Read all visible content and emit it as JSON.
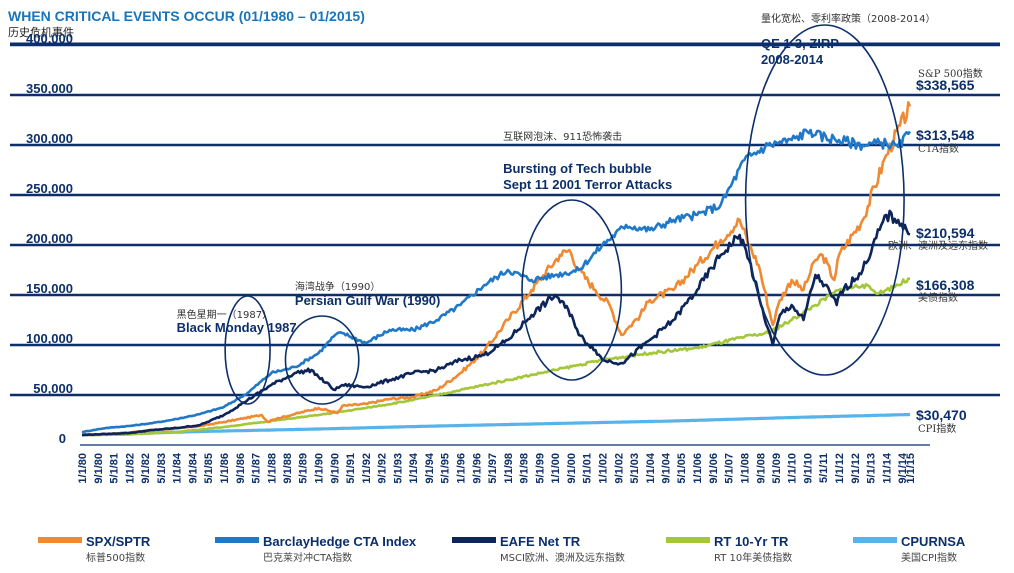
{
  "chart_data": {
    "type": "line",
    "title": "WHEN CRITICAL EVENTS OCCUR (01/1980 – 01/2015)",
    "subtitle": "历史危机事件",
    "ylim": [
      0,
      400000
    ],
    "yticks": [
      "0",
      "50,000",
      "100,000",
      "150,000",
      "200,000",
      "250,000",
      "300,000",
      "350,000",
      "400,000"
    ],
    "xlim": [
      1980.0,
      2015.0
    ],
    "xticks": [
      {
        "label": "1/1/80",
        "t": 1980.0
      },
      {
        "label": "9/1/80",
        "t": 1980.67
      },
      {
        "label": "5/1/81",
        "t": 1981.33
      },
      {
        "label": "1/1/82",
        "t": 1982.0
      },
      {
        "label": "9/1/82",
        "t": 1982.67
      },
      {
        "label": "5/1/83",
        "t": 1983.33
      },
      {
        "label": "1/1/84",
        "t": 1984.0
      },
      {
        "label": "9/1/84",
        "t": 1984.67
      },
      {
        "label": "5/1/85",
        "t": 1985.33
      },
      {
        "label": "1/1/86",
        "t": 1986.0
      },
      {
        "label": "9/1/86",
        "t": 1986.67
      },
      {
        "label": "5/1/87",
        "t": 1987.33
      },
      {
        "label": "1/1/88",
        "t": 1988.0
      },
      {
        "label": "9/1/88",
        "t": 1988.67
      },
      {
        "label": "5/1/89",
        "t": 1989.33
      },
      {
        "label": "1/1/90",
        "t": 1990.0
      },
      {
        "label": "9/1/90",
        "t": 1990.67
      },
      {
        "label": "5/1/91",
        "t": 1991.33
      },
      {
        "label": "1/1/92",
        "t": 1992.0
      },
      {
        "label": "9/1/92",
        "t": 1992.67
      },
      {
        "label": "5/1/93",
        "t": 1993.33
      },
      {
        "label": "1/1/94",
        "t": 1994.0
      },
      {
        "label": "9/1/94",
        "t": 1994.67
      },
      {
        "label": "5/1/95",
        "t": 1995.33
      },
      {
        "label": "1/1/96",
        "t": 1996.0
      },
      {
        "label": "9/1/96",
        "t": 1996.67
      },
      {
        "label": "5/1/97",
        "t": 1997.33
      },
      {
        "label": "1/1/98",
        "t": 1998.0
      },
      {
        "label": "9/1/98",
        "t": 1998.67
      },
      {
        "label": "5/1/99",
        "t": 1999.33
      },
      {
        "label": "1/1/00",
        "t": 2000.0
      },
      {
        "label": "9/1/00",
        "t": 2000.67
      },
      {
        "label": "5/1/01",
        "t": 2001.33
      },
      {
        "label": "1/1/02",
        "t": 2002.0
      },
      {
        "label": "9/1/02",
        "t": 2002.67
      },
      {
        "label": "5/1/03",
        "t": 2003.33
      },
      {
        "label": "1/1/04",
        "t": 2004.0
      },
      {
        "label": "9/1/04",
        "t": 2004.67
      },
      {
        "label": "5/1/05",
        "t": 2005.33
      },
      {
        "label": "1/1/06",
        "t": 2006.0
      },
      {
        "label": "9/1/06",
        "t": 2006.67
      },
      {
        "label": "5/1/07",
        "t": 2007.33
      },
      {
        "label": "1/1/08",
        "t": 2008.0
      },
      {
        "label": "9/1/08",
        "t": 2008.67
      },
      {
        "label": "5/1/09",
        "t": 2009.33
      },
      {
        "label": "1/1/10",
        "t": 2010.0
      },
      {
        "label": "9/1/10",
        "t": 2010.67
      },
      {
        "label": "5/1/11",
        "t": 2011.33
      },
      {
        "label": "1/1/12",
        "t": 2012.0
      },
      {
        "label": "9/1/12",
        "t": 2012.67
      },
      {
        "label": "5/1/13",
        "t": 2013.33
      },
      {
        "label": "1/1/14",
        "t": 2014.0
      },
      {
        "label": "9/1/14",
        "t": 2014.67
      },
      {
        "label": "1/1/15",
        "t": 2015.0
      }
    ],
    "series": [
      {
        "name": "SPX/SPTR",
        "name_cn": "标普500指数",
        "color": "#f08a32",
        "end_value": "$338,565",
        "end_label": "S&P 500指数",
        "points": [
          [
            1980,
            10000
          ],
          [
            1981,
            11000
          ],
          [
            1982,
            12500
          ],
          [
            1983,
            15000
          ],
          [
            1984,
            16500
          ],
          [
            1985,
            19000
          ],
          [
            1986,
            23000
          ],
          [
            1987.6,
            30000
          ],
          [
            1987.85,
            23000
          ],
          [
            1988,
            25000
          ],
          [
            1989,
            31000
          ],
          [
            1990,
            37000
          ],
          [
            1990.8,
            32000
          ],
          [
            1991,
            39000
          ],
          [
            1992,
            41000
          ],
          [
            1993,
            46000
          ],
          [
            1994,
            48000
          ],
          [
            1995,
            55000
          ],
          [
            1996,
            72000
          ],
          [
            1997,
            94000
          ],
          [
            1998,
            125000
          ],
          [
            1999,
            155000
          ],
          [
            2000.2,
            190000
          ],
          [
            2000.6,
            195000
          ],
          [
            2001,
            175000
          ],
          [
            2001.7,
            155000
          ],
          [
            2002.3,
            140000
          ],
          [
            2002.8,
            110000
          ],
          [
            2003,
            115000
          ],
          [
            2003.6,
            130000
          ],
          [
            2004,
            145000
          ],
          [
            2005,
            155000
          ],
          [
            2006,
            180000
          ],
          [
            2007,
            205000
          ],
          [
            2007.8,
            225000
          ],
          [
            2008.2,
            200000
          ],
          [
            2008.6,
            180000
          ],
          [
            2009.2,
            120000
          ],
          [
            2009.5,
            145000
          ],
          [
            2010,
            165000
          ],
          [
            2010.5,
            155000
          ],
          [
            2011,
            185000
          ],
          [
            2011.3,
            190000
          ],
          [
            2011.8,
            165000
          ],
          [
            2012,
            190000
          ],
          [
            2013,
            225000
          ],
          [
            2014,
            290000
          ],
          [
            2015,
            338565
          ]
        ]
      },
      {
        "name": "BarclayHedge CTA Index",
        "name_cn": "巴克莱对冲CTA指数",
        "color": "#1f78c8",
        "end_value": "$313,548",
        "end_label": "CTA指数",
        "points": [
          [
            1980,
            13000
          ],
          [
            1981,
            17000
          ],
          [
            1982,
            19000
          ],
          [
            1983,
            22000
          ],
          [
            1984,
            26000
          ],
          [
            1985,
            31000
          ],
          [
            1986,
            38000
          ],
          [
            1987,
            52000
          ],
          [
            1987.8,
            68000
          ],
          [
            1988,
            72000
          ],
          [
            1989,
            78000
          ],
          [
            1990,
            92000
          ],
          [
            1990.7,
            110000
          ],
          [
            1991,
            112000
          ],
          [
            1992,
            102000
          ],
          [
            1993,
            115000
          ],
          [
            1994,
            115000
          ],
          [
            1995,
            125000
          ],
          [
            1996,
            140000
          ],
          [
            1997,
            160000
          ],
          [
            1998,
            175000
          ],
          [
            1999,
            165000
          ],
          [
            2000,
            170000
          ],
          [
            2001,
            175000
          ],
          [
            2002,
            200000
          ],
          [
            2003,
            220000
          ],
          [
            2004,
            215000
          ],
          [
            2005,
            225000
          ],
          [
            2006,
            230000
          ],
          [
            2007,
            240000
          ],
          [
            2008,
            285000
          ],
          [
            2009,
            300000
          ],
          [
            2010,
            305000
          ],
          [
            2010.8,
            315000
          ],
          [
            2011,
            310000
          ],
          [
            2012,
            305000
          ],
          [
            2013,
            300000
          ],
          [
            2014,
            302000
          ],
          [
            2014.5,
            298000
          ],
          [
            2015,
            313548
          ]
        ]
      },
      {
        "name": "EAFE Net TR",
        "name_cn": "MSCI欧洲、澳洲及远东指数",
        "color": "#0c2458",
        "end_value": "$210,594",
        "end_label": "欧洲、澳洲及远东指数",
        "points": [
          [
            1980,
            10000
          ],
          [
            1981,
            11000
          ],
          [
            1982,
            12000
          ],
          [
            1983,
            15000
          ],
          [
            1984,
            17000
          ],
          [
            1985,
            20000
          ],
          [
            1986,
            30000
          ],
          [
            1987,
            45000
          ],
          [
            1988,
            60000
          ],
          [
            1989,
            72000
          ],
          [
            1989.7,
            75000
          ],
          [
            1990,
            68000
          ],
          [
            1990.7,
            55000
          ],
          [
            1991,
            60000
          ],
          [
            1992,
            58000
          ],
          [
            1993,
            65000
          ],
          [
            1994,
            72000
          ],
          [
            1995,
            75000
          ],
          [
            1996,
            85000
          ],
          [
            1997,
            90000
          ],
          [
            1998,
            105000
          ],
          [
            1999,
            130000
          ],
          [
            2000,
            150000
          ],
          [
            2000.7,
            130000
          ],
          [
            2001,
            110000
          ],
          [
            2001.7,
            95000
          ],
          [
            2002,
            85000
          ],
          [
            2002.8,
            82000
          ],
          [
            2003,
            85000
          ],
          [
            2004,
            105000
          ],
          [
            2005,
            125000
          ],
          [
            2006,
            155000
          ],
          [
            2007,
            190000
          ],
          [
            2007.8,
            210000
          ],
          [
            2008.2,
            185000
          ],
          [
            2008.7,
            140000
          ],
          [
            2009.2,
            100000
          ],
          [
            2009.5,
            130000
          ],
          [
            2010,
            140000
          ],
          [
            2010.5,
            125000
          ],
          [
            2011,
            170000
          ],
          [
            2011.4,
            160000
          ],
          [
            2011.9,
            140000
          ],
          [
            2012,
            150000
          ],
          [
            2013,
            175000
          ],
          [
            2014,
            230000
          ],
          [
            2014.5,
            225000
          ],
          [
            2015,
            210594
          ]
        ]
      },
      {
        "name": "RT 10-Yr TR",
        "name_cn": "RT 10年美债指数",
        "color": "#a4c639",
        "end_value": "$166,308",
        "end_label": "美债指数",
        "points": [
          [
            1980,
            10000
          ],
          [
            1982,
            10500
          ],
          [
            1984,
            13000
          ],
          [
            1986,
            18000
          ],
          [
            1988,
            24000
          ],
          [
            1990,
            30000
          ],
          [
            1992,
            37000
          ],
          [
            1994,
            45000
          ],
          [
            1996,
            55000
          ],
          [
            1998,
            65000
          ],
          [
            2000,
            75000
          ],
          [
            2002,
            85000
          ],
          [
            2004,
            92000
          ],
          [
            2006,
            97000
          ],
          [
            2008,
            108000
          ],
          [
            2009,
            112000
          ],
          [
            2010,
            125000
          ],
          [
            2011,
            140000
          ],
          [
            2012,
            155000
          ],
          [
            2013,
            160000
          ],
          [
            2013.7,
            152000
          ],
          [
            2014,
            155000
          ],
          [
            2015,
            166308
          ]
        ]
      },
      {
        "name": "CPURNSA",
        "name_cn": "美国CPI指数",
        "color": "#56b4ea",
        "end_value": "$30,470",
        "end_label": "CPI指数",
        "points": [
          [
            1980,
            10000
          ],
          [
            1985,
            13500
          ],
          [
            1990,
            16000
          ],
          [
            1995,
            19000
          ],
          [
            2000,
            21500
          ],
          [
            2005,
            24000
          ],
          [
            2010,
            27500
          ],
          [
            2015,
            30470
          ]
        ]
      }
    ],
    "annotations": [
      {
        "en": "Black Monday 1987",
        "cn": "黑色星期一（1987）"
      },
      {
        "en": "Persian Gulf War (1990)",
        "cn": "海湾战争（1990）"
      },
      {
        "en": [
          "Bursting of Tech bubble",
          "Sept 11 2001 Terror Attacks"
        ],
        "cn": "互联网泡沫、911恐怖袭击"
      },
      {
        "en": [
          "QE 1-3, ZIRP",
          "2008-2014"
        ],
        "cn": "量化宽松、零利率政策（2008-2014）"
      }
    ],
    "legend_position": "bottom"
  }
}
